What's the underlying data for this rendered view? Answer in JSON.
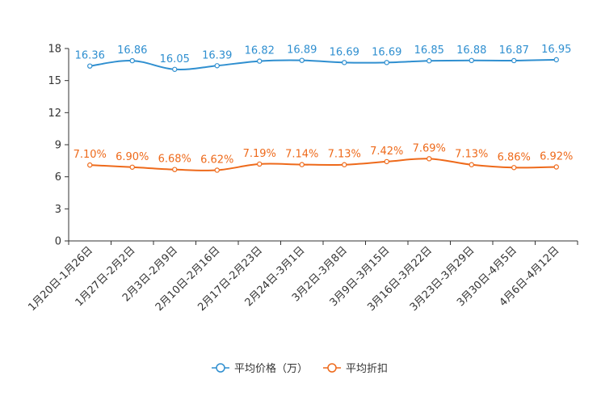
{
  "chart_data": {
    "type": "line",
    "categories": [
      "1月20日-1月26日",
      "1月27日-2月2日",
      "2月3日-2月9日",
      "2月10日-2月16日",
      "2月17日-2月23日",
      "2月24日-3月1日",
      "3月2日-3月8日",
      "3月9日-3月15日",
      "3月16日-3月22日",
      "3月23日-3月29日",
      "3月30日-4月5日",
      "4月6日-4月12日"
    ],
    "ylim": [
      0,
      18
    ],
    "yticks": [
      0,
      3,
      6,
      9,
      12,
      15,
      18
    ],
    "ytick_labels": [
      "0",
      "3",
      "6",
      "9",
      "12",
      "15",
      "18"
    ],
    "legend_position": "bottom-center",
    "series": [
      {
        "name": "平均价格（万）",
        "color": "#2f8fd0",
        "values": [
          16.36,
          16.86,
          16.05,
          16.39,
          16.82,
          16.89,
          16.69,
          16.69,
          16.85,
          16.88,
          16.87,
          16.95
        ],
        "labels": [
          "16.36",
          "16.86",
          "16.05",
          "16.39",
          "16.82",
          "16.89",
          "16.69",
          "16.69",
          "16.85",
          "16.88",
          "16.87",
          "16.95"
        ]
      },
      {
        "name": "平均折扣",
        "color": "#ee6a1b",
        "values": [
          7.1,
          6.9,
          6.68,
          6.62,
          7.19,
          7.14,
          7.13,
          7.42,
          7.69,
          7.13,
          6.86,
          6.92
        ],
        "labels": [
          "7.10%",
          "6.90%",
          "6.68%",
          "6.62%",
          "7.19%",
          "7.14%",
          "7.13%",
          "7.42%",
          "7.69%",
          "7.13%",
          "6.86%",
          "6.92%"
        ]
      }
    ]
  }
}
